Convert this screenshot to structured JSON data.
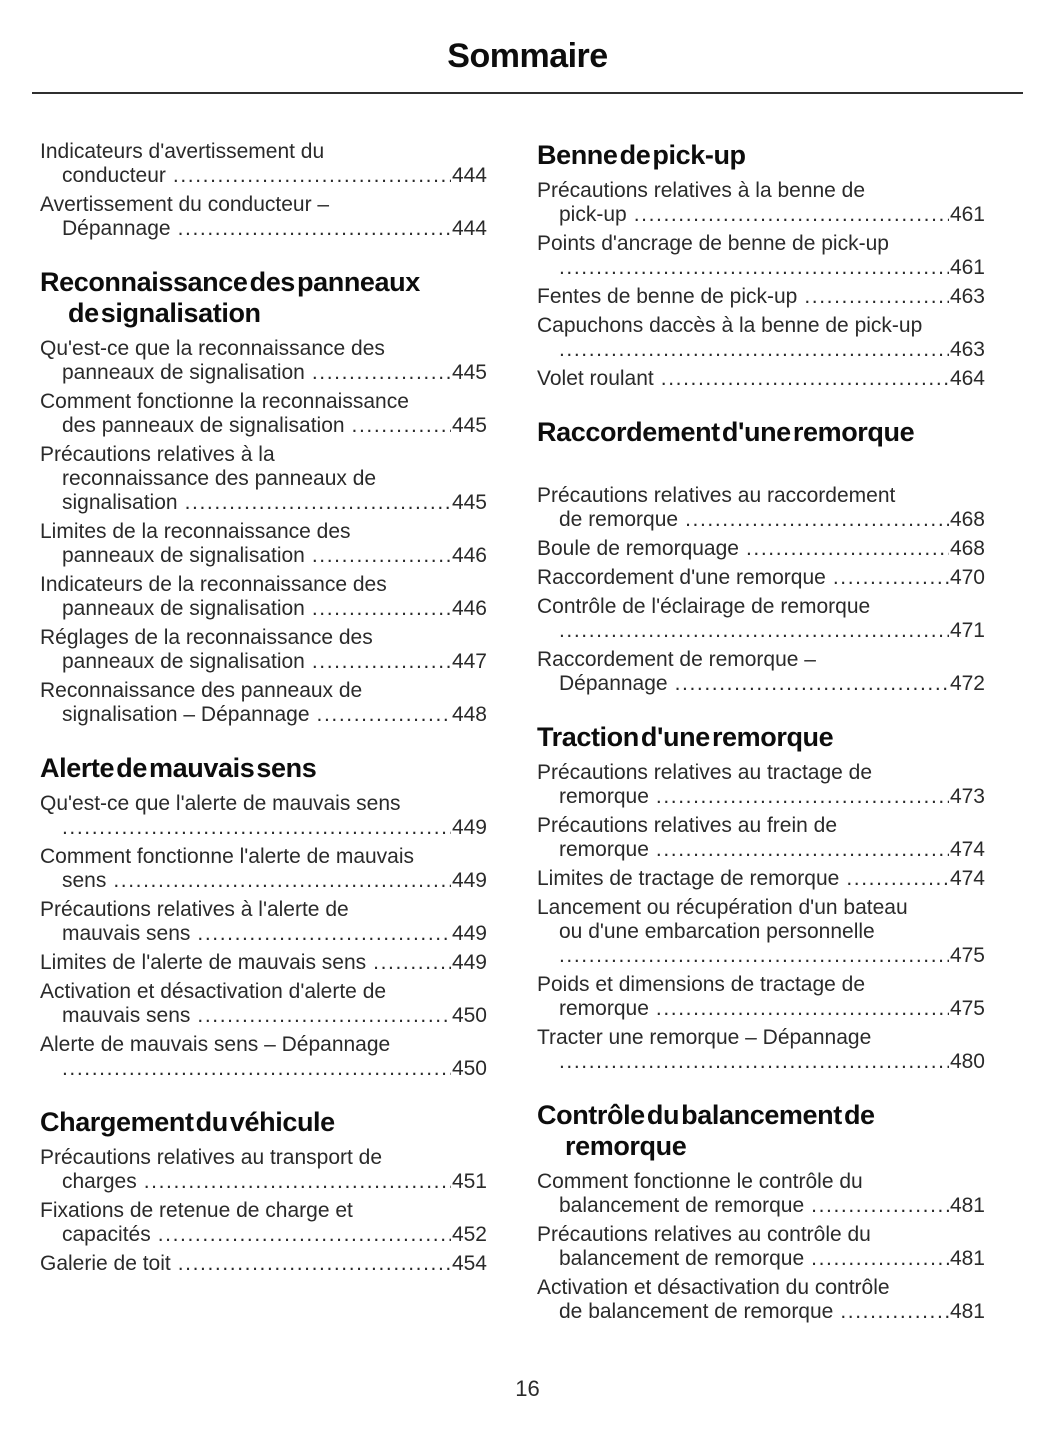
{
  "header": {
    "title": "Sommaire"
  },
  "footer": {
    "page_number": "16"
  },
  "columns": {
    "left": {
      "sections": [
        {
          "heading_lines": null,
          "entries": [
            {
              "lines": [
                "Indicateurs d'avertissement du",
                "conducteur"
              ],
              "page": "444"
            },
            {
              "lines": [
                "Avertissement du conducteur –",
                "Dépannage"
              ],
              "page": "444"
            }
          ]
        },
        {
          "heading_lines": [
            "Reconnaissance des panneaux",
            "de signalisation"
          ],
          "entries": [
            {
              "lines": [
                "Qu'est-ce que la reconnaissance des",
                "panneaux de signalisation"
              ],
              "page": "445"
            },
            {
              "lines": [
                "Comment fonctionne la reconnaissance",
                "des panneaux de signalisation"
              ],
              "page": "445"
            },
            {
              "lines": [
                "Précautions relatives à la",
                "reconnaissance des panneaux de",
                "signalisation"
              ],
              "page": "445"
            },
            {
              "lines": [
                "Limites de la reconnaissance des",
                "panneaux de signalisation"
              ],
              "page": "446"
            },
            {
              "lines": [
                "Indicateurs de la reconnaissance des",
                "panneaux de signalisation"
              ],
              "page": "446"
            },
            {
              "lines": [
                "Réglages de la reconnaissance des",
                "panneaux de signalisation"
              ],
              "page": "447"
            },
            {
              "lines": [
                "Reconnaissance des panneaux de",
                "signalisation – Dépannage"
              ],
              "page": "448"
            }
          ]
        },
        {
          "heading_lines": [
            "Alerte de mauvais sens"
          ],
          "entries": [
            {
              "lines": [
                "Qu'est-ce que l'alerte de mauvais sens",
                ""
              ],
              "page": "449"
            },
            {
              "lines": [
                "Comment fonctionne l'alerte de mauvais",
                "sens"
              ],
              "page": "449"
            },
            {
              "lines": [
                "Précautions relatives à l'alerte de",
                "mauvais sens"
              ],
              "page": "449"
            },
            {
              "lines": [
                "Limites de l'alerte de mauvais sens"
              ],
              "page": "449"
            },
            {
              "lines": [
                "Activation et désactivation d'alerte de",
                "mauvais sens"
              ],
              "page": "450"
            },
            {
              "lines": [
                "Alerte de mauvais sens – Dépannage",
                ""
              ],
              "page": "450"
            }
          ]
        },
        {
          "heading_lines": [
            "Chargement du véhicule"
          ],
          "entries": [
            {
              "lines": [
                "Précautions relatives au transport de",
                "charges"
              ],
              "page": "451"
            },
            {
              "lines": [
                "Fixations de retenue de charge et",
                "capacités"
              ],
              "page": "452"
            },
            {
              "lines": [
                "Galerie de toit"
              ],
              "page": "454"
            }
          ]
        }
      ]
    },
    "right": {
      "sections": [
        {
          "heading_lines": [
            "Benne de pick-up"
          ],
          "entries": [
            {
              "lines": [
                "Précautions relatives à la benne de",
                "pick-up"
              ],
              "page": "461"
            },
            {
              "lines": [
                "Points d'ancrage de benne de pick-up",
                ""
              ],
              "page": "461"
            },
            {
              "lines": [
                "Fentes de benne de pick-up"
              ],
              "page": "463"
            },
            {
              "lines": [
                "Capuchons daccès à la benne de pick-up",
                ""
              ],
              "page": "463"
            },
            {
              "lines": [
                "Volet roulant"
              ],
              "page": "464"
            }
          ]
        },
        {
          "heading_lines": [
            "Raccordement d'une remorque"
          ],
          "extra_gap": true,
          "entries": [
            {
              "lines": [
                "Précautions relatives au raccordement",
                "de remorque"
              ],
              "page": "468"
            },
            {
              "lines": [
                "Boule de remorquage"
              ],
              "page": "468"
            },
            {
              "lines": [
                "Raccordement d'une remorque"
              ],
              "page": "470"
            },
            {
              "lines": [
                "Contrôle de l'éclairage de remorque",
                ""
              ],
              "page": "471"
            },
            {
              "lines": [
                "Raccordement de remorque –",
                "Dépannage"
              ],
              "page": "472"
            }
          ]
        },
        {
          "heading_lines": [
            "Traction d'une remorque"
          ],
          "entries": [
            {
              "lines": [
                "Précautions relatives au tractage de",
                "remorque"
              ],
              "page": "473"
            },
            {
              "lines": [
                "Précautions relatives au frein de",
                "remorque"
              ],
              "page": "474"
            },
            {
              "lines": [
                "Limites de tractage de remorque"
              ],
              "page": "474"
            },
            {
              "lines": [
                "Lancement ou récupération d'un bateau",
                "ou d'une embarcation personnelle",
                ""
              ],
              "page": "475"
            },
            {
              "lines": [
                "Poids et dimensions de tractage de",
                "remorque"
              ],
              "page": "475"
            },
            {
              "lines": [
                "Tracter une remorque – Dépannage",
                ""
              ],
              "page": "480"
            }
          ]
        },
        {
          "heading_lines": [
            "Contrôle du balancement de",
            "remorque"
          ],
          "entries": [
            {
              "lines": [
                "Comment fonctionne le contrôle du",
                "balancement de remorque"
              ],
              "page": "481"
            },
            {
              "lines": [
                "Précautions relatives au contrôle du",
                "balancement de remorque"
              ],
              "page": "481"
            },
            {
              "lines": [
                "Activation et désactivation du contrôle",
                "de balancement de remorque"
              ],
              "page": "481"
            }
          ]
        }
      ]
    }
  }
}
